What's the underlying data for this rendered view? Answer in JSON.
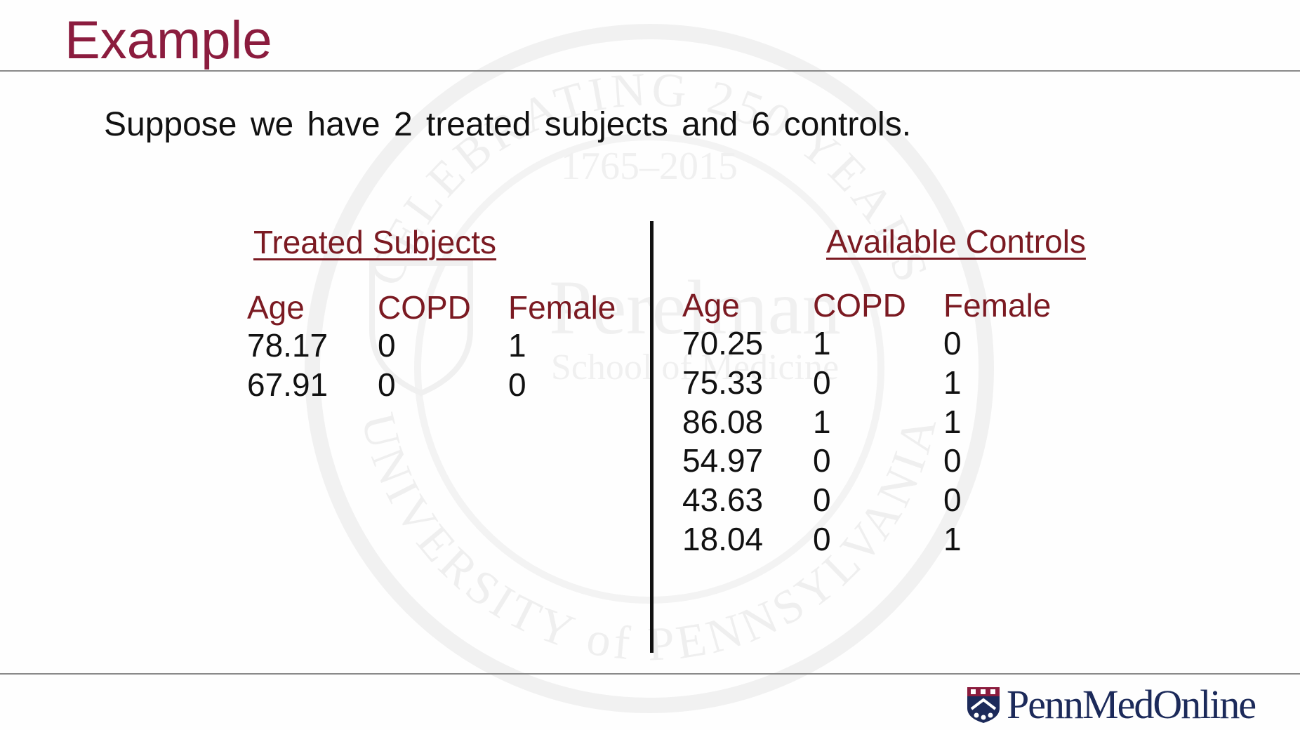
{
  "slide": {
    "title": "Example",
    "subtitle": "Suppose we have 2 treated subjects and 6 controls."
  },
  "treated": {
    "heading": "Treated Subjects",
    "columns": [
      "Age",
      "COPD",
      "Female"
    ],
    "rows": [
      [
        "78.17",
        "0",
        "1"
      ],
      [
        "67.91",
        "0",
        "0"
      ]
    ]
  },
  "controls": {
    "heading": "Available Controls",
    "columns": [
      "Age",
      "COPD",
      "Female"
    ],
    "rows": [
      [
        "70.25",
        "1",
        "0"
      ],
      [
        "75.33",
        "0",
        "1"
      ],
      [
        "86.08",
        "1",
        "1"
      ],
      [
        "54.97",
        "0",
        "0"
      ],
      [
        "43.63",
        "0",
        "0"
      ],
      [
        "18.04",
        "0",
        "1"
      ]
    ]
  },
  "footer": {
    "logo_text": "PennMedOnline"
  },
  "watermark": {
    "line1": "CELEBRATING 250 YEARS",
    "line2": "1765–2015",
    "line3": "Perelman",
    "line4": "School of Medicine",
    "line5": "UNIVERSITY of PENNSYLVANIA"
  },
  "colors": {
    "title": "#8b1c3e",
    "heading": "#7b1a22",
    "body_text": "#111111",
    "rule": "#8a8a8a",
    "logo": "#1c2a5a"
  }
}
